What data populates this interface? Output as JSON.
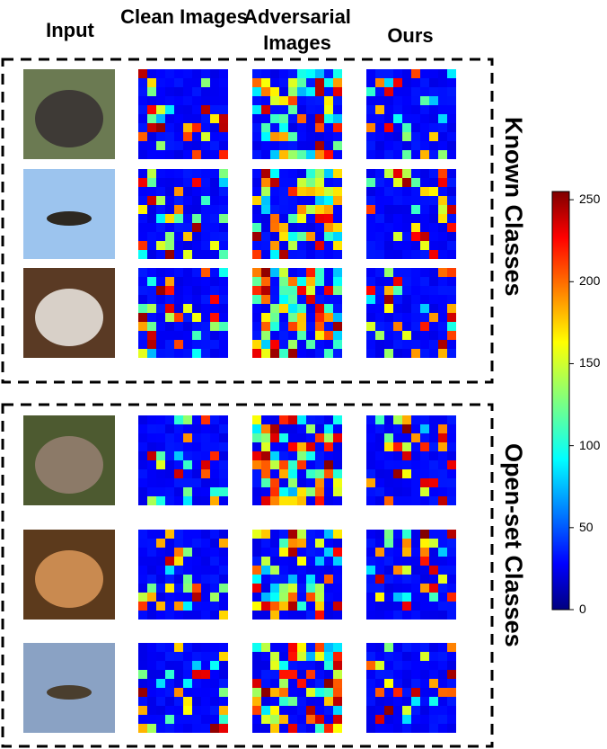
{
  "headers": [
    "Input",
    "Clean Images",
    "Adversarial Images",
    "Ours"
  ],
  "groups": [
    "Known Classes",
    "Open-set Classes"
  ],
  "colorbar": {
    "lim": [
      0,
      255
    ],
    "ticks": [
      0,
      50,
      100,
      150,
      200,
      250
    ]
  }
}
